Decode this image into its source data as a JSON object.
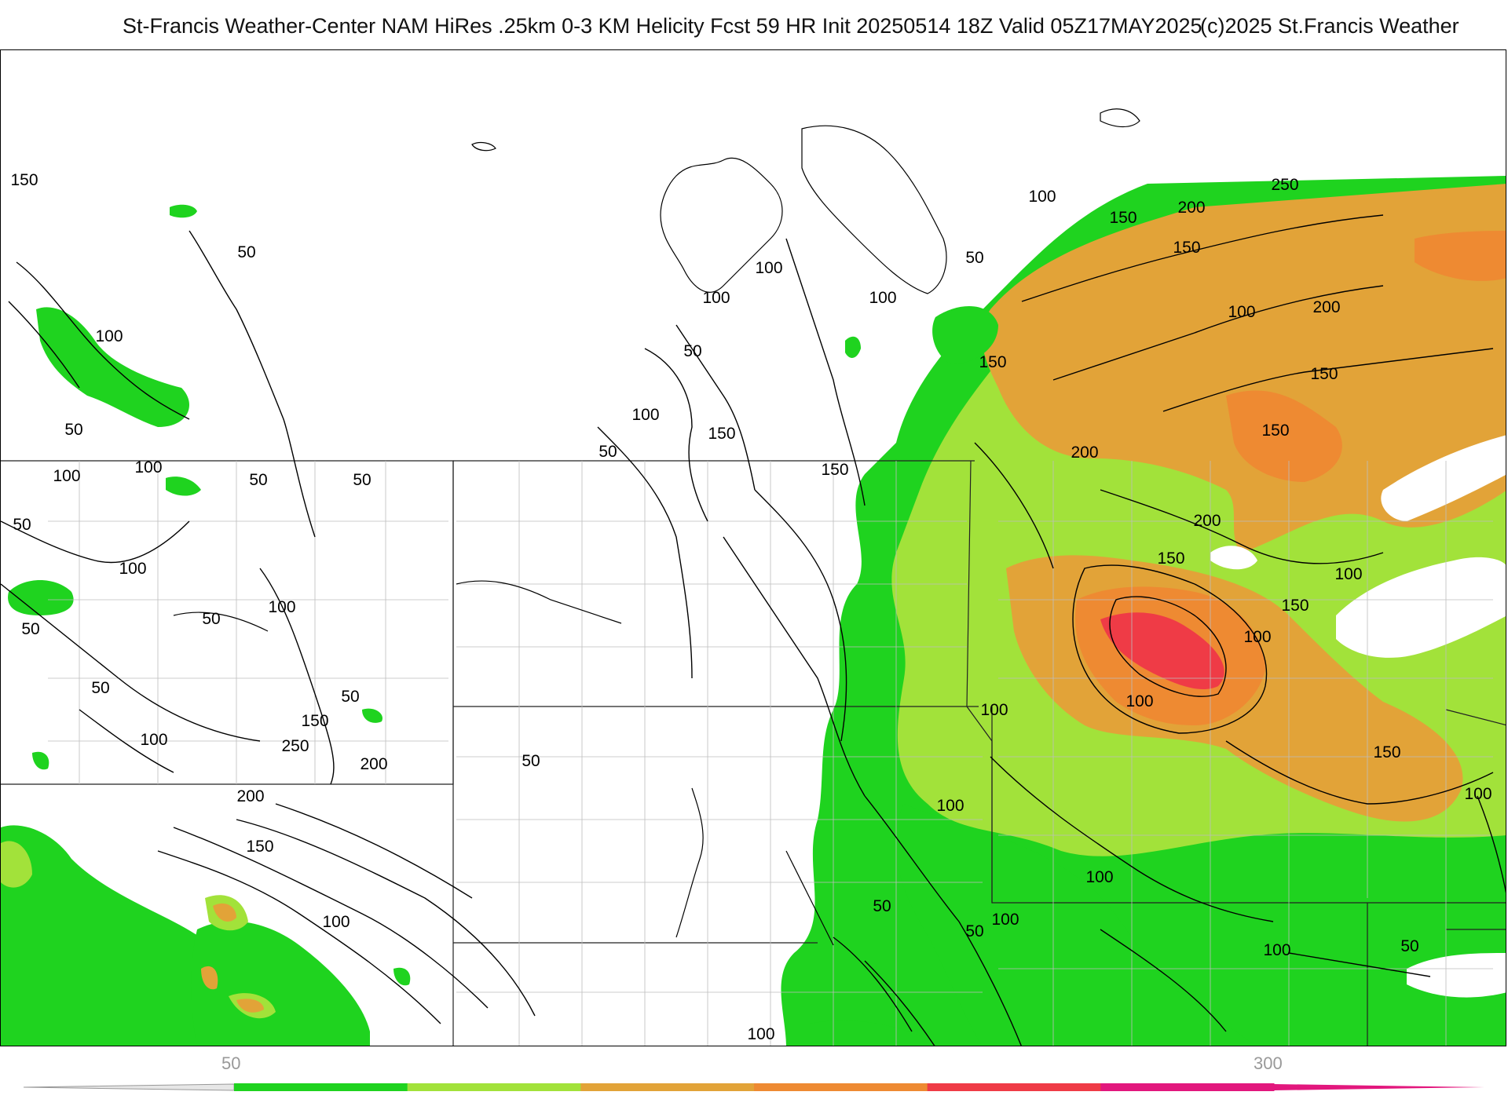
{
  "header": {
    "title": "St-Francis Weather-Center NAM HiRes .25km 0-3 KM Helicity Fcst 59 HR Init 20250514 18Z  Valid 05Z17MAY2025",
    "copyright": "(c)2025 St.Francis Weather"
  },
  "colorbar": {
    "min_label": "50",
    "max_label": "300",
    "colors": [
      "#1fd31f",
      "#a2e23a",
      "#e2a338",
      "#ee8a32",
      "#ef3b46",
      "#e2177d"
    ]
  },
  "contour_labels": [
    "150",
    "50",
    "100",
    "50",
    "100",
    "50",
    "100",
    "50",
    "100",
    "50",
    "50",
    "50",
    "100",
    "50",
    "50",
    "100",
    "150",
    "200",
    "250",
    "200",
    "150",
    "100",
    "50",
    "50",
    "100",
    "150",
    "50",
    "100",
    "100",
    "150",
    "100",
    "50",
    "100",
    "150",
    "200",
    "250",
    "150",
    "200",
    "150",
    "100",
    "200",
    "150",
    "150",
    "200",
    "150",
    "100",
    "150",
    "100",
    "100",
    "100",
    "100",
    "100",
    "100",
    "50",
    "100",
    "50",
    "150",
    "100",
    "50",
    "100"
  ]
}
